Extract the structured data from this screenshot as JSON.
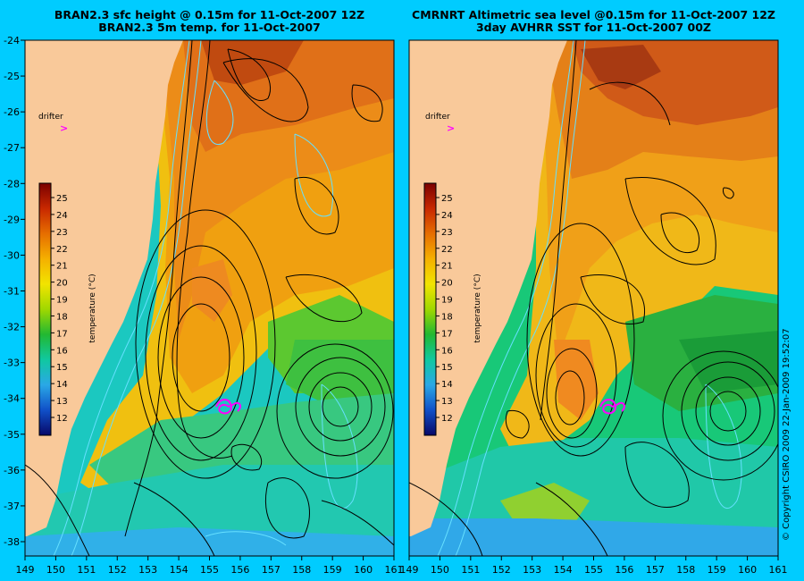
{
  "panels": [
    {
      "id": "left",
      "title_line1": "BRAN2.3 sfc height @ 0.15m for 11-Oct-2007 12Z",
      "title_line2": "BRAN2.3 5m temp. for 11-Oct-2007",
      "drifter_label": "drifter",
      "drifter_marker": ">",
      "colorbar_ticks": [
        "25",
        "24",
        "23",
        "22",
        "21",
        "20",
        "19",
        "18",
        "17",
        "16",
        "15",
        "14",
        "13",
        "12"
      ],
      "colorbar_label": "temperature (°C)"
    },
    {
      "id": "right",
      "title_line1": "CMRNRT Altimetric sea level  @0.15m  for 11-Oct-2007 12Z",
      "title_line2": "3day AVHRR SST for 11-Oct-2007 00Z",
      "drifter_label": "drifter",
      "drifter_marker": ">",
      "colorbar_ticks": [
        "25",
        "24",
        "23",
        "22",
        "21",
        "20",
        "19",
        "18",
        "17",
        "16",
        "15",
        "14",
        "13",
        "12"
      ],
      "colorbar_label": "temperature (°C)"
    }
  ],
  "lat_ticks": [
    "-24",
    "-25",
    "-26",
    "-27",
    "-28",
    "-29",
    "-30",
    "-31",
    "-32",
    "-33",
    "-34",
    "-35",
    "-36",
    "-37",
    "-38"
  ],
  "lon_ticks": [
    "149",
    "150",
    "151",
    "152",
    "153",
    "154",
    "155",
    "156",
    "157",
    "158",
    "159",
    "160",
    "161"
  ],
  "copyright": "© Copyright CSIRO 2009   22-Jan-2009 19:52:07",
  "colors": {
    "background": "#00ccff",
    "land": "#f9c99a",
    "contour": "#000000",
    "drifter": "#ff00ff",
    "bathymetry": "#66e0ff"
  }
}
